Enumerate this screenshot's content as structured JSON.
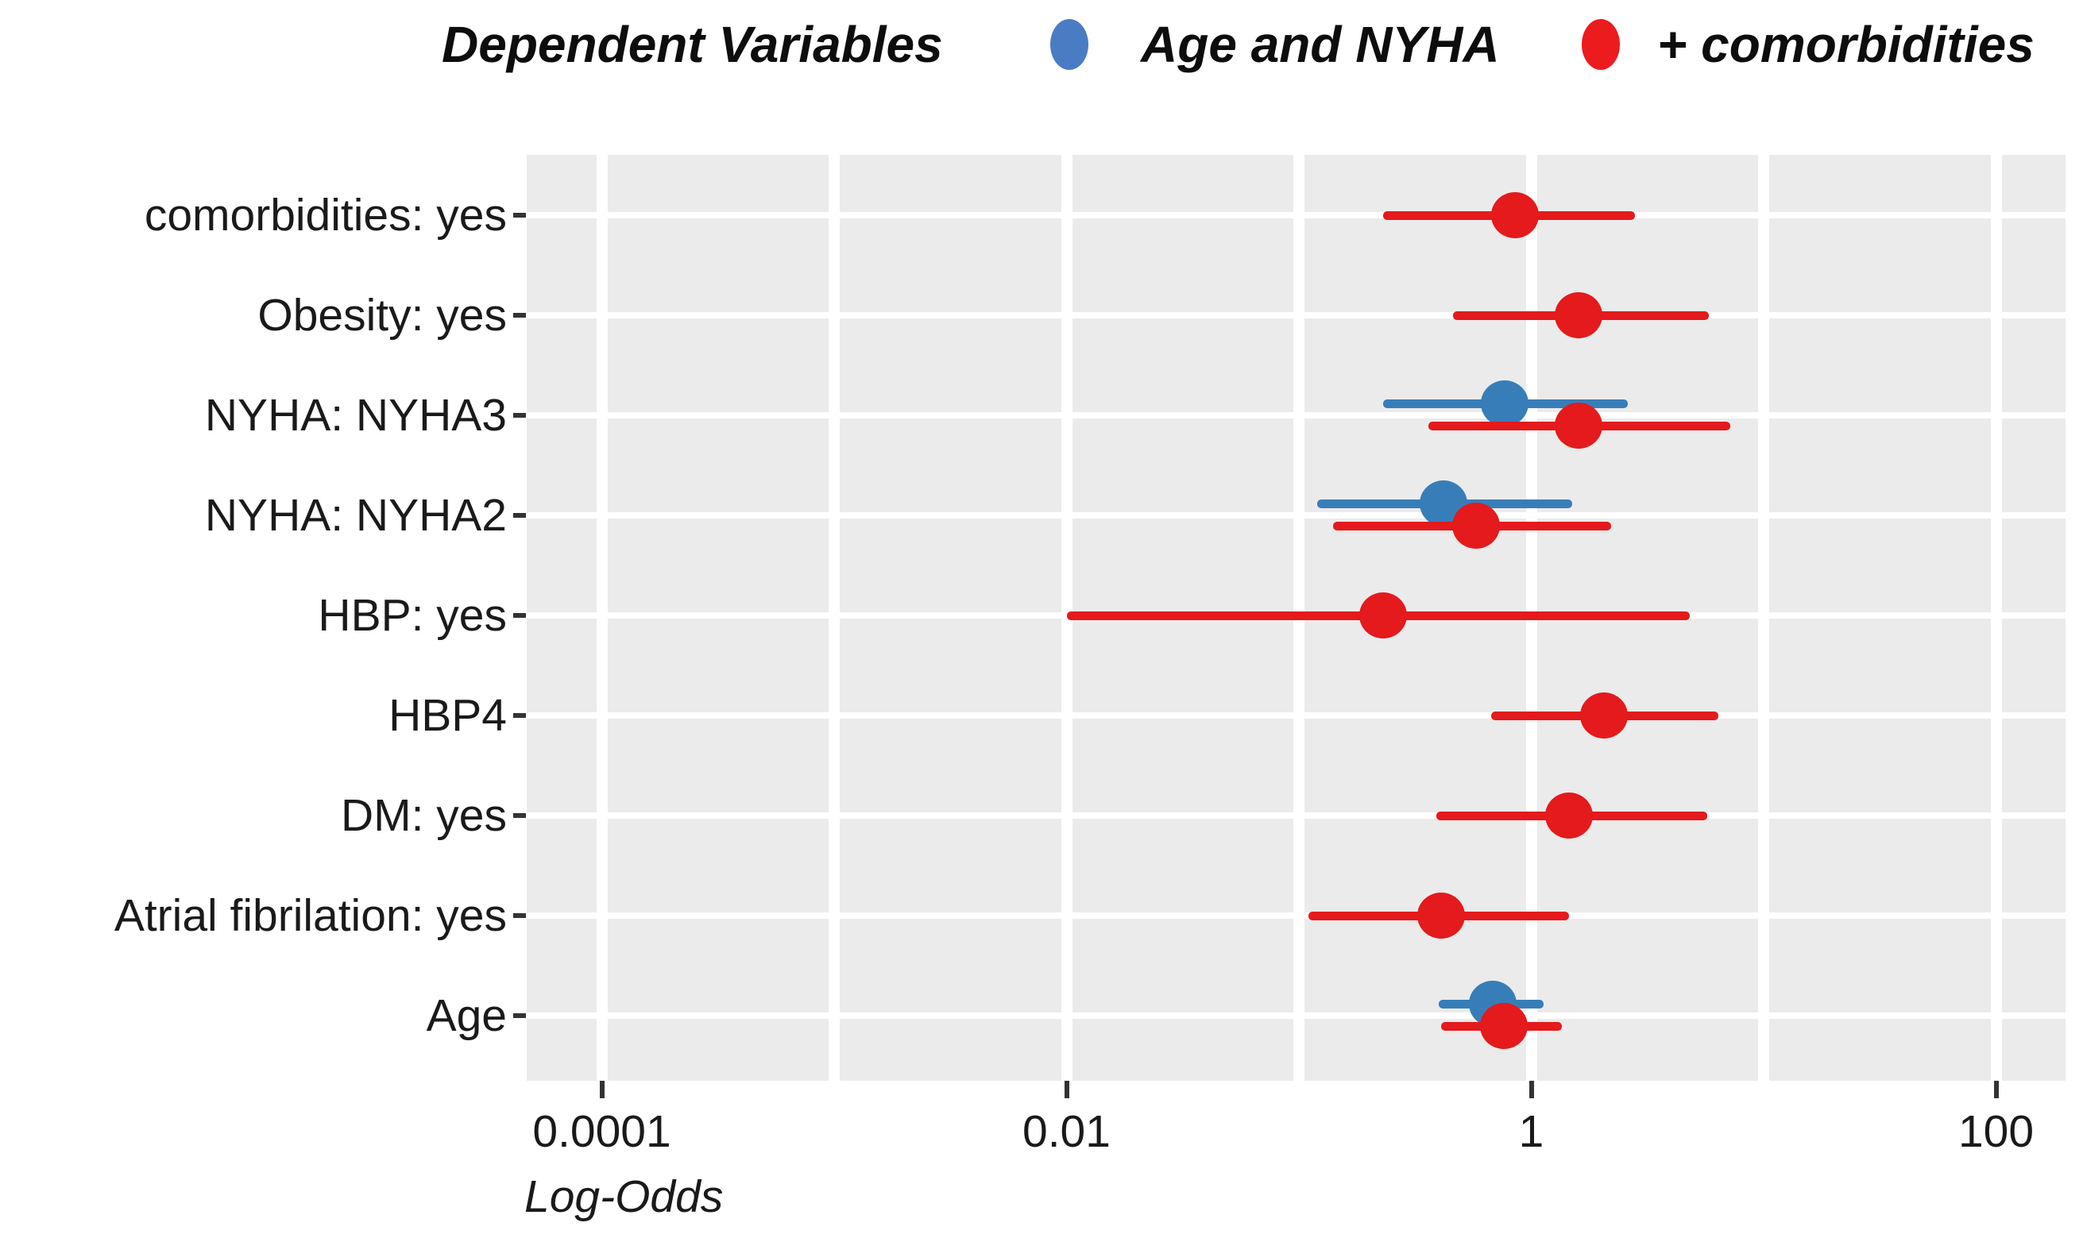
{
  "legend": {
    "title": "Dependent Variables",
    "items": [
      {
        "label": "Age and NYHA",
        "series": "age_nyha",
        "color": "#4a7cc4"
      },
      {
        "label": "+ comorbidities",
        "series": "comorbidities",
        "color": "#ec1b1e"
      }
    ]
  },
  "palette": {
    "plot_blue": "#377eb8",
    "plot_red": "#e41a1c",
    "panel_bg": "#ebebeb",
    "grid": "#ffffff",
    "text": "#1a1a1a",
    "tick": "#333333"
  },
  "chart_data": {
    "type": "scatter",
    "subtype": "forest-plot-odds-ratios-with-ci",
    "title": "",
    "xlabel": "Log-Odds",
    "ylabel": "",
    "x_scale": "log10",
    "x_range": [
      4.75e-05,
      199
    ],
    "x_ticks": [
      "0.0001",
      "0.01",
      "1",
      "100"
    ],
    "x_tick_values": [
      0.0001,
      0.01,
      1,
      100
    ],
    "grid": "on",
    "legend_position": "top",
    "categories": [
      "comorbidities: yes",
      "Obesity: yes",
      "NYHA: NYHA3",
      "NYHA: NYHA2",
      "HBP: yes",
      "HBP4",
      "DM: yes",
      "Atrial fibrilation: yes",
      "Age"
    ],
    "series": [
      {
        "name": "Age and NYHA",
        "color": "#377eb8",
        "points": [
          {
            "category": "NYHA: NYHA3",
            "or": 0.77,
            "ci_low": 0.23,
            "ci_high": 2.6
          },
          {
            "category": "NYHA: NYHA2",
            "or": 0.42,
            "ci_low": 0.12,
            "ci_high": 1.5
          },
          {
            "category": "Age",
            "or": 0.68,
            "ci_low": 0.4,
            "ci_high": 1.13
          }
        ]
      },
      {
        "name": "+ comorbidities",
        "color": "#e41a1c",
        "points": [
          {
            "category": "comorbidities: yes",
            "or": 0.85,
            "ci_low": 0.23,
            "ci_high": 2.8
          },
          {
            "category": "Obesity: yes",
            "or": 1.6,
            "ci_low": 0.46,
            "ci_high": 5.8
          },
          {
            "category": "NYHA: NYHA3",
            "or": 1.6,
            "ci_low": 0.36,
            "ci_high": 7.2
          },
          {
            "category": "NYHA: NYHA2",
            "or": 0.58,
            "ci_low": 0.14,
            "ci_high": 2.2
          },
          {
            "category": "HBP: yes",
            "or": 0.23,
            "ci_low": 0.01,
            "ci_high": 4.8
          },
          {
            "category": "HBP4",
            "or": 2.05,
            "ci_low": 0.67,
            "ci_high": 6.4
          },
          {
            "category": "DM: yes",
            "or": 1.45,
            "ci_low": 0.39,
            "ci_high": 5.7
          },
          {
            "category": "Atrial fibrilation: yes",
            "or": 0.41,
            "ci_low": 0.11,
            "ci_high": 1.45
          },
          {
            "category": "Age",
            "or": 0.76,
            "ci_low": 0.41,
            "ci_high": 1.35
          }
        ]
      }
    ]
  }
}
